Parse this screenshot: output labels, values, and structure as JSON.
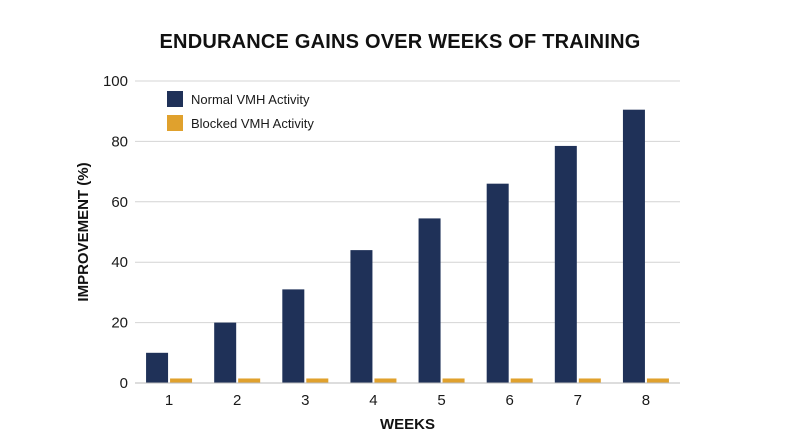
{
  "chart_data": {
    "type": "bar",
    "title": "ENDURANCE GAINS OVER WEEKS OF TRAINING",
    "xlabel": "WEEKS",
    "ylabel": "IMPROVEMENT (%)",
    "categories": [
      "1",
      "2",
      "3",
      "4",
      "5",
      "6",
      "7",
      "8"
    ],
    "yticks": [
      0,
      20,
      40,
      60,
      80,
      100
    ],
    "ylim": [
      0,
      100
    ],
    "grid": true,
    "legend_position": "top-left",
    "series": [
      {
        "name": "Normal VMH Activity",
        "color": "#1f3158",
        "values": [
          10,
          20,
          31,
          44,
          54.5,
          66,
          78.5,
          90.5
        ]
      },
      {
        "name": "Blocked VMH Activity",
        "color": "#e0a12d",
        "values": [
          1.5,
          1.5,
          1.5,
          1.5,
          1.5,
          1.5,
          1.5,
          1.5
        ]
      }
    ]
  }
}
